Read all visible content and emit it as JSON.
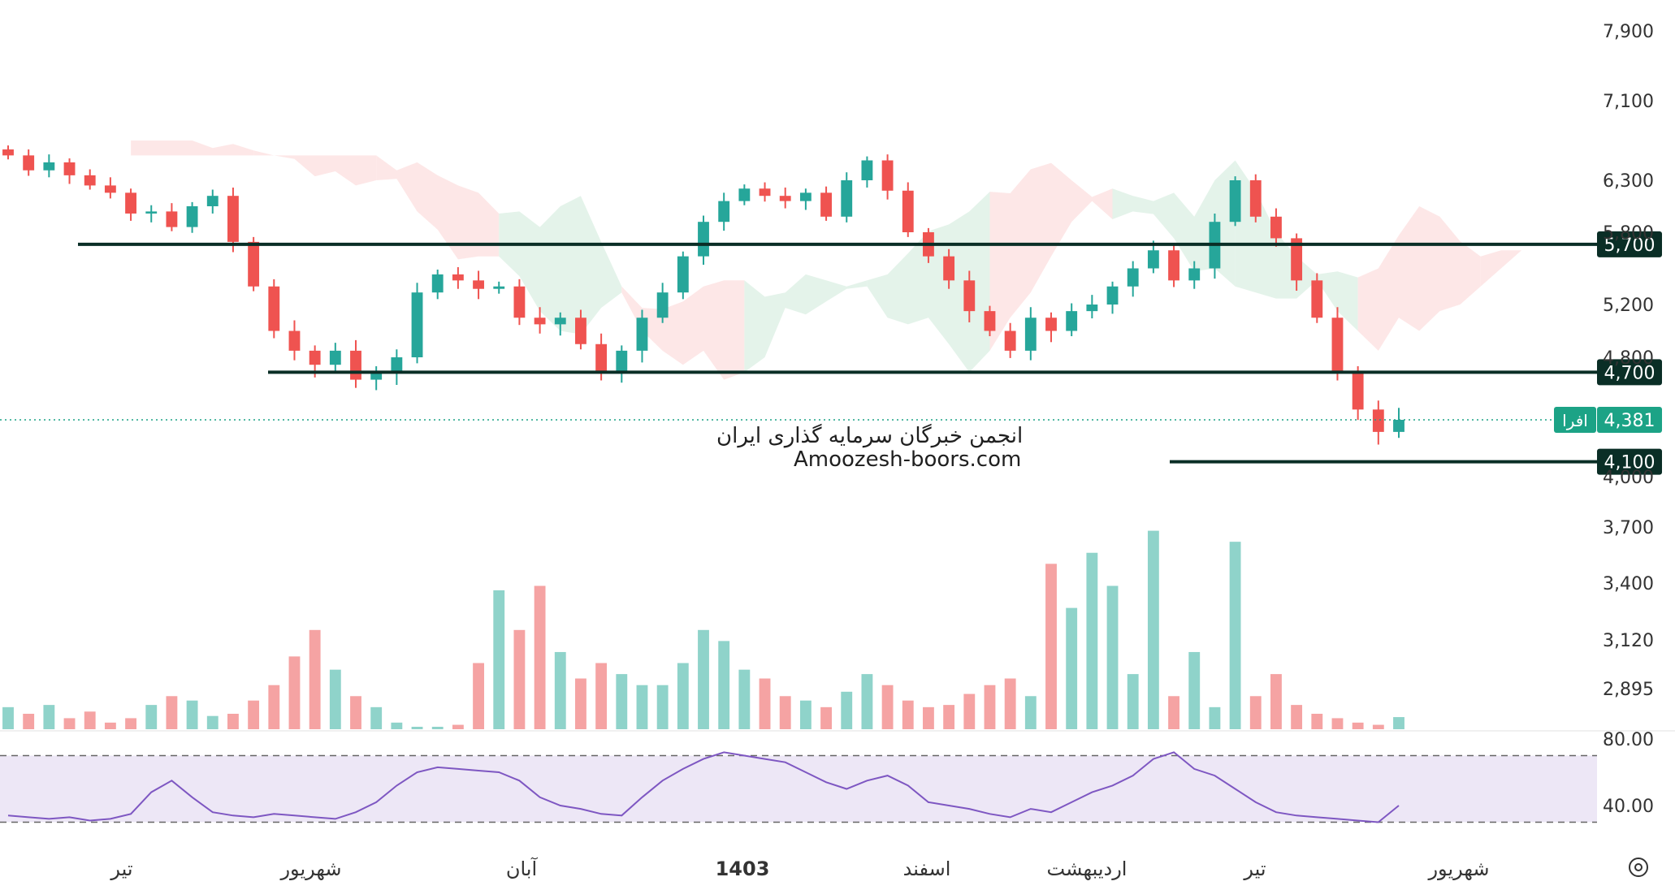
{
  "chart_data": {
    "type": "candlestick",
    "symbol": "افرا",
    "last_price": "4,381",
    "watermark": {
      "line1": "انجمن خبرگان سرمایه گذاری ایران",
      "line2": "Amoozesh-boors.com"
    },
    "price_axis": {
      "ticks": [
        "7,900",
        "7,100",
        "6,300",
        "5,800",
        "5,200",
        "4,800",
        "4,000",
        "3,700",
        "3,400",
        "3,120",
        "2,895"
      ],
      "tick_values": [
        7900,
        7100,
        6300,
        5800,
        5200,
        4800,
        4000,
        3700,
        3400,
        3120,
        2895
      ]
    },
    "horizontal_levels": [
      {
        "label": "5,700",
        "value": 5700
      },
      {
        "label": "4,700",
        "value": 4700
      },
      {
        "label": "4,100",
        "value": 4100
      }
    ],
    "time_axis": {
      "labels": [
        "تیر",
        "شهریور",
        "آبان",
        "1403",
        "اسفند",
        "اردیبهشت",
        "تیر",
        "شهریور"
      ],
      "bold_label": "1403"
    },
    "price_series": {
      "name": "close",
      "values": [
        6550,
        6400,
        6480,
        6350,
        6250,
        6180,
        5980,
        6000,
        5850,
        6050,
        6150,
        5720,
        5350,
        5000,
        4850,
        4750,
        4850,
        4650,
        4700,
        4800,
        5300,
        5450,
        5400,
        5330,
        5350,
        5100,
        5050,
        5100,
        4900,
        4700,
        4850,
        5100,
        5300,
        5600,
        5900,
        6100,
        6220,
        6150,
        6100,
        6180,
        5950,
        6300,
        6500,
        6200,
        5800,
        5600,
        5400,
        5150,
        5000,
        4850,
        5100,
        5000,
        5150,
        5200,
        5350,
        5500,
        5650,
        5400,
        5500,
        5900,
        6300,
        5950,
        5750,
        5400,
        5100,
        4700,
        4450,
        4300,
        4381
      ]
    },
    "volume_series": {
      "name": "volume",
      "values": [
        2950,
        2920,
        2960,
        2900,
        2930,
        2880,
        2900,
        2960,
        3000,
        2980,
        2910,
        2920,
        2980,
        3050,
        3180,
        3300,
        3120,
        3000,
        2950,
        2880,
        2850,
        2860,
        2870,
        3150,
        3480,
        3300,
        3500,
        3200,
        3080,
        3150,
        3100,
        3050,
        3050,
        3150,
        3300,
        3250,
        3120,
        3080,
        3000,
        2980,
        2950,
        3020,
        3100,
        3050,
        2980,
        2950,
        2960,
        3010,
        3050,
        3080,
        3000,
        3600,
        3400,
        3650,
        3500,
        3100,
        3750,
        3000,
        3200,
        2950,
        3700,
        3000,
        3100,
        2960,
        2920,
        2900,
        2880,
        2870,
        2905
      ]
    },
    "rsi": {
      "ticks": [
        "80.00",
        "40.00"
      ],
      "tick_values": [
        80,
        40
      ],
      "band": [
        30,
        70
      ],
      "values": [
        34,
        33,
        32,
        33,
        31,
        32,
        35,
        48,
        55,
        45,
        36,
        34,
        33,
        35,
        34,
        33,
        32,
        36,
        42,
        52,
        60,
        63,
        62,
        61,
        60,
        55,
        45,
        40,
        38,
        35,
        34,
        45,
        55,
        62,
        68,
        72,
        70,
        68,
        66,
        60,
        54,
        50,
        55,
        58,
        52,
        42,
        40,
        38,
        35,
        33,
        38,
        36,
        42,
        48,
        52,
        58,
        68,
        72,
        62,
        58,
        50,
        42,
        36,
        34,
        33,
        32,
        31,
        30,
        40
      ]
    },
    "colors": {
      "up": "#26a69a",
      "down": "#ef5350",
      "volume_up": "#8fd3ca",
      "volume_down": "#f5a3a3",
      "level_line": "#0a2e26",
      "rsi_line": "#7e57c2",
      "rsi_band": "#ede7f6",
      "cloud_red": "#fde3e3",
      "cloud_green": "#dff1e6",
      "last_price": "#1ca386"
    }
  }
}
